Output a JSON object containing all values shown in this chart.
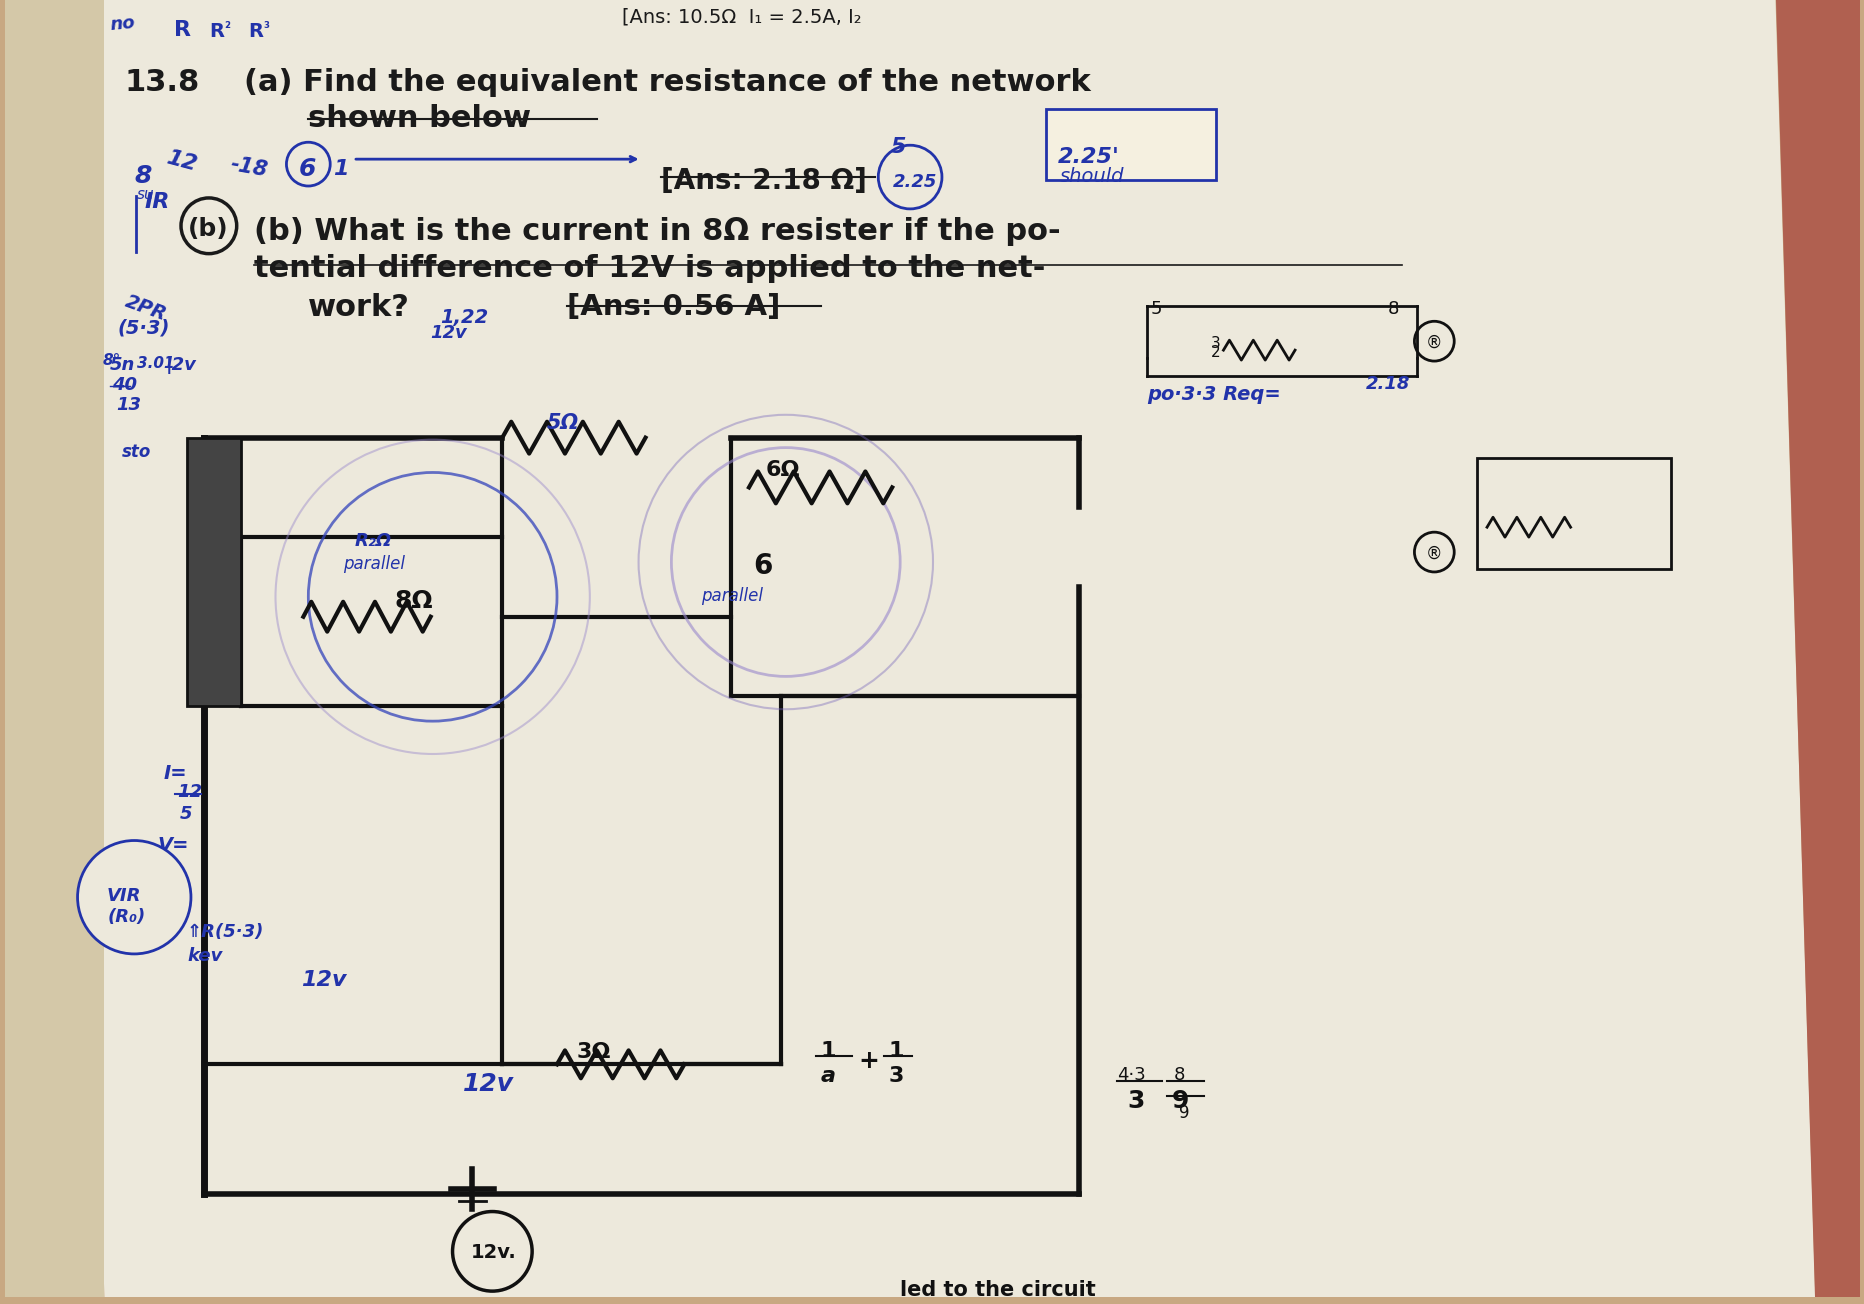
{
  "bg_color": "#c8a882",
  "page_color": "#ede9dc",
  "page_color2": "#d4c8a8",
  "right_edge_color": "#b06050",
  "text_dark": "#1a1a1a",
  "text_hw": "#2233aa",
  "title_top": "[Ans: 10.5Ω  I₁ = 2.5A, I₂",
  "problem_number": "13.8",
  "part_a_line1": "(a) Find the equivalent resistance of the network",
  "part_a_line2": "shown below",
  "ans_a": "[Ans: 2.18 Ω]",
  "part_b_line1": "(b) What is the current in 8Ω resister if the po-",
  "part_b_line2": "tential difference of 12V is applied to the net-",
  "part_b_line3": "work?",
  "ans_b": "[Ans: 0.56 A]"
}
